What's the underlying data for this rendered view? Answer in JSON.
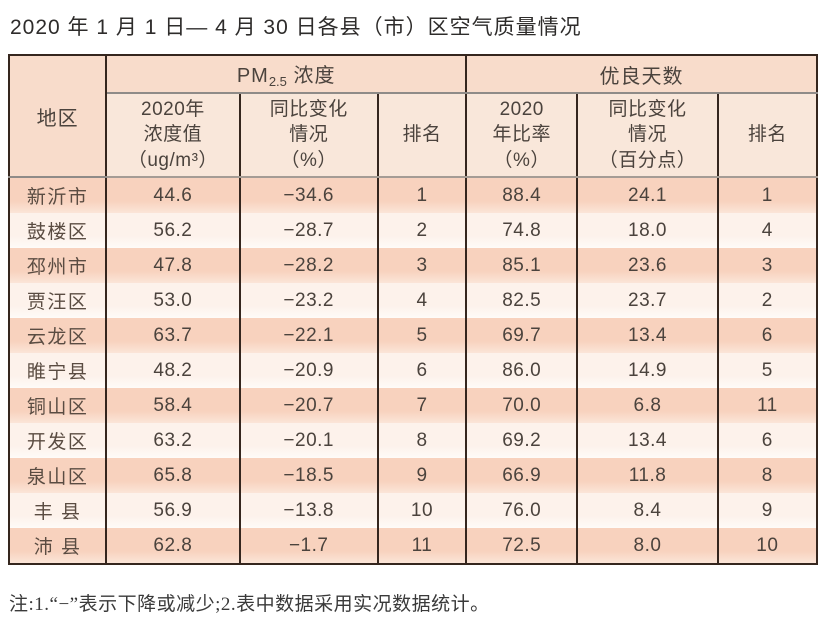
{
  "title": "2020 年 1 月 1 日— 4 月 30 日各县（市）区空气质量情况",
  "table": {
    "region_header": "地区",
    "group_pm": {
      "prefix": "PM",
      "subscript": "2.5",
      "label": " 浓度"
    },
    "group_days": "优良天数",
    "subheaders": {
      "pm_value": "2020年\n浓度值\n（ug/m³）",
      "pm_change": "同比变化\n情况\n（%）",
      "pm_rank": "排名",
      "days_rate": "2020\n年比率\n（%）",
      "days_change": "同比变化\n情况\n（百分点）",
      "days_rank": "排名"
    }
  },
  "note": "注:1.“−”表示下降或减少;2.表中数据采用实况数据统计。",
  "colors": {
    "header_bg": "#f8dccb",
    "subheader_bg": "#f9e7da",
    "row_salmon": "#f8d2be",
    "row_cream": "#fdf2eb",
    "border_dark": "#35261e",
    "border_gray": "#8f8b88",
    "text": "#4b433d"
  },
  "chart_data": {
    "type": "table",
    "title": "2020年1月1日—4月30日各县（市）区空气质量情况",
    "column_groups": [
      "PM2.5浓度",
      "优良天数"
    ],
    "columns": [
      "地区",
      "2020年浓度值（ug/m³）",
      "同比变化情况（%）",
      "PM2.5排名",
      "2020年比率（%）",
      "同比变化情况（百分点）",
      "优良天数排名"
    ],
    "rows": [
      [
        "新沂市",
        "44.6",
        "−34.6",
        "1",
        "88.4",
        "24.1",
        "1"
      ],
      [
        "鼓楼区",
        "56.2",
        "−28.7",
        "2",
        "74.8",
        "18.0",
        "4"
      ],
      [
        "邳州市",
        "47.8",
        "−28.2",
        "3",
        "85.1",
        "23.6",
        "3"
      ],
      [
        "贾汪区",
        "53.0",
        "−23.2",
        "4",
        "82.5",
        "23.7",
        "2"
      ],
      [
        "云龙区",
        "63.7",
        "−22.1",
        "5",
        "69.7",
        "13.4",
        "6"
      ],
      [
        "睢宁县",
        "48.2",
        "−20.9",
        "6",
        "86.0",
        "14.9",
        "5"
      ],
      [
        "铜山区",
        "58.4",
        "−20.7",
        "7",
        "70.0",
        "6.8",
        "11"
      ],
      [
        "开发区",
        "63.2",
        "−20.1",
        "8",
        "69.2",
        "13.4",
        "6"
      ],
      [
        "泉山区",
        "65.8",
        "−18.5",
        "9",
        "66.9",
        "11.8",
        "8"
      ],
      [
        "丰 县",
        "56.9",
        "−13.8",
        "10",
        "76.0",
        "8.4",
        "9"
      ],
      [
        "沛 县",
        "62.8",
        "−1.7",
        "11",
        "72.5",
        "8.0",
        "10"
      ]
    ]
  }
}
